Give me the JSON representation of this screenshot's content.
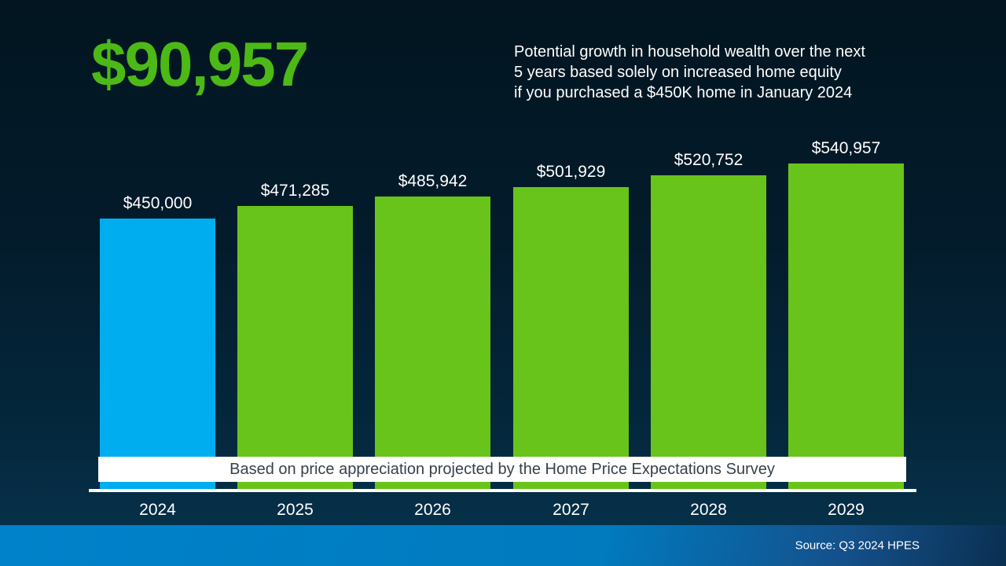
{
  "header": {
    "amount": "$90,957",
    "description_lines": [
      "Potential growth in household wealth over the next",
      "5 years based solely on increased home equity",
      "if you purchased a $450K home in January 2024"
    ]
  },
  "chart_data": {
    "type": "bar",
    "categories": [
      "2024",
      "2025",
      "2026",
      "2027",
      "2028",
      "2029"
    ],
    "values": [
      450000,
      471285,
      485942,
      501929,
      520752,
      540957
    ],
    "value_labels": [
      "$450,000",
      "$471,285",
      "$485,942",
      "$501,929",
      "$520,752",
      "$540,957"
    ],
    "bar_colors": [
      "#00aeef",
      "#68c41a",
      "#68c41a",
      "#68c41a",
      "#68c41a",
      "#68c41a"
    ],
    "title": "",
    "xlabel": "",
    "ylabel": "",
    "ylim": [
      0,
      540957
    ],
    "grid": false,
    "legend": null,
    "annotation": "Based on price appreciation projected by the Home Price Expectations Survey"
  },
  "banner": {
    "text": "Based on price appreciation projected by the Home Price Expectations Survey"
  },
  "footer": {
    "source": "Source: Q3 2024 HPES"
  },
  "colors": {
    "accent_green": "#4cb916",
    "bar_green": "#68c41a",
    "bar_blue": "#00aeef",
    "background_top": "#021520",
    "background_bottom": "#063049",
    "footer_blue": "#0082ca"
  }
}
